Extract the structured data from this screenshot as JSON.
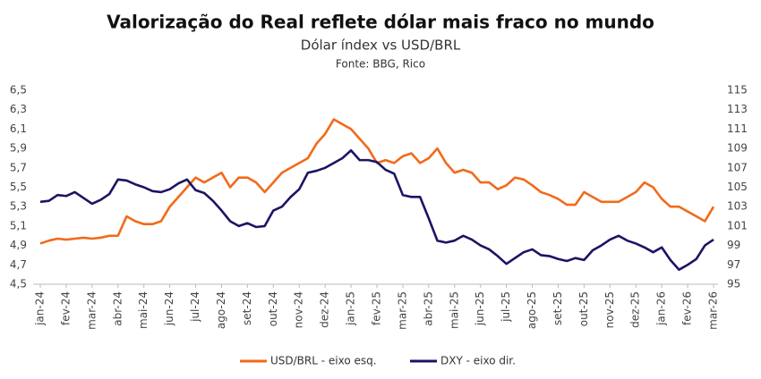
{
  "chart_data": {
    "type": "line",
    "title": "Valorização do Real reflete dólar mais fraco no mundo",
    "subtitle": "Dólar índex vs USD/BRL",
    "source": "Fonte: BBG, Rico",
    "categories": [
      "jan-24",
      null,
      null,
      "fev-24",
      null,
      null,
      "mar-24",
      null,
      null,
      "abr-24",
      null,
      null,
      "mai-24",
      null,
      null,
      "jun-24",
      null,
      null,
      "jul-24",
      null,
      null,
      "ago-24",
      null,
      null,
      "set-24",
      null,
      null,
      "out-24",
      null,
      null,
      "nov-24",
      null,
      null,
      "dez-24",
      null,
      null,
      "jan-25",
      null,
      null,
      "fev-25",
      null,
      null,
      "mar-25",
      null,
      null,
      "abr-25",
      null,
      null,
      "mai-25",
      null,
      null,
      "jun-25",
      null,
      null,
      "jul-25",
      null,
      null,
      "ago-25",
      null,
      null,
      "set-25",
      null,
      null,
      "out-25",
      null,
      null,
      "nov-25",
      null,
      null,
      "dez-25",
      null,
      null,
      "jan-26",
      null,
      null,
      "fev-26",
      null,
      null,
      "mar-26"
    ],
    "series": [
      {
        "name": "USD/BRL - eixo esq.",
        "color": "#f26a1b",
        "axis": "y",
        "values": [
          4.92,
          4.95,
          4.97,
          4.96,
          4.97,
          4.98,
          4.97,
          4.98,
          5.0,
          5.0,
          5.2,
          5.15,
          5.12,
          5.12,
          5.15,
          5.3,
          5.4,
          5.5,
          5.6,
          5.55,
          5.6,
          5.65,
          5.5,
          5.6,
          5.6,
          5.55,
          5.45,
          5.55,
          5.65,
          5.7,
          5.75,
          5.8,
          5.95,
          6.05,
          6.2,
          6.15,
          6.1,
          6.0,
          5.9,
          5.75,
          5.78,
          5.75,
          5.82,
          5.85,
          5.75,
          5.8,
          5.9,
          5.75,
          5.65,
          5.68,
          5.65,
          5.55,
          5.55,
          5.48,
          5.52,
          5.6,
          5.58,
          5.52,
          5.45,
          5.42,
          5.38,
          5.32,
          5.32,
          5.45,
          5.4,
          5.35,
          5.35,
          5.35,
          5.4,
          5.45,
          5.55,
          5.5,
          5.38,
          5.3,
          5.3,
          5.25,
          5.2,
          5.15,
          5.3
        ]
      },
      {
        "name": "DXY - eixo dir.",
        "color": "#1b1464",
        "axis": "y2",
        "values": [
          103.5,
          103.6,
          104.2,
          104.1,
          104.5,
          103.9,
          103.3,
          103.7,
          104.3,
          105.8,
          105.7,
          105.3,
          105.0,
          104.6,
          104.5,
          104.8,
          105.4,
          105.8,
          104.7,
          104.4,
          103.6,
          102.6,
          101.5,
          101.0,
          101.3,
          100.9,
          101.0,
          102.6,
          103.0,
          104.0,
          104.8,
          106.5,
          106.7,
          107.0,
          107.5,
          108.0,
          108.8,
          107.8,
          107.8,
          107.6,
          106.8,
          106.4,
          104.2,
          104.0,
          104.0,
          101.8,
          99.5,
          99.3,
          99.5,
          100.0,
          99.6,
          99.0,
          98.6,
          97.9,
          97.1,
          97.7,
          98.3,
          98.6,
          98.0,
          97.9,
          97.6,
          97.4,
          97.7,
          97.5,
          98.5,
          99.0,
          99.6,
          100.0,
          99.5,
          99.2,
          98.8,
          98.3,
          98.8,
          97.5,
          96.5,
          97.0,
          97.6,
          99.0,
          99.6
        ]
      }
    ],
    "ylim": [
      4.5,
      6.5
    ],
    "yticks": [
      {
        "value": 4.5,
        "label": "4,5"
      },
      {
        "value": 4.7,
        "label": "4,7"
      },
      {
        "value": 4.9,
        "label": "4,9"
      },
      {
        "value": 5.1,
        "label": "5,1"
      },
      {
        "value": 5.3,
        "label": "5,3"
      },
      {
        "value": 5.5,
        "label": "5,5"
      },
      {
        "value": 5.7,
        "label": "5,7"
      },
      {
        "value": 5.9,
        "label": "5,9"
      },
      {
        "value": 6.1,
        "label": "6,1"
      },
      {
        "value": 6.3,
        "label": "6,3"
      },
      {
        "value": 6.5,
        "label": "6,5"
      }
    ],
    "y2lim": [
      95,
      115
    ],
    "y2ticks": [
      95,
      97,
      99,
      101,
      103,
      105,
      107,
      109,
      111,
      113,
      115
    ],
    "legend": "bottom",
    "grid": false
  }
}
